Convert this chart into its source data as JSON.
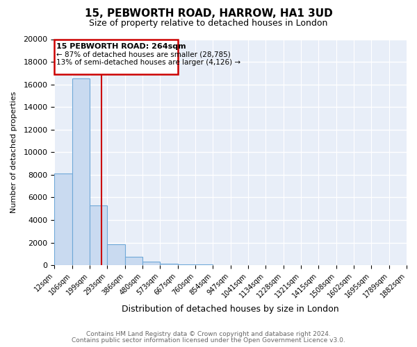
{
  "title": "15, PEBWORTH ROAD, HARROW, HA1 3UD",
  "subtitle": "Size of property relative to detached houses in London",
  "xlabel": "Distribution of detached houses by size in London",
  "ylabel": "Number of detached properties",
  "bar_values": [
    8100,
    16550,
    5300,
    1850,
    750,
    300,
    150,
    100,
    75,
    0,
    0,
    0,
    0,
    0,
    0,
    0,
    0,
    0,
    0,
    0
  ],
  "bar_labels": [
    "12sqm",
    "106sqm",
    "199sqm",
    "293sqm",
    "386sqm",
    "480sqm",
    "573sqm",
    "667sqm",
    "760sqm",
    "854sqm",
    "947sqm",
    "1041sqm",
    "1134sqm",
    "1228sqm",
    "1321sqm",
    "1415sqm",
    "1508sqm",
    "1602sqm",
    "1695sqm",
    "1789sqm",
    "1882sqm"
  ],
  "bar_color": "#c9daf0",
  "bar_edge_color": "#6fa8d8",
  "vline_color": "#cc0000",
  "annotation_line1": "15 PEBWORTH ROAD: 264sqm",
  "annotation_line2": "← 87% of detached houses are smaller (28,785)",
  "annotation_line3": "13% of semi-detached houses are larger (4,126) →",
  "ylim": [
    0,
    20000
  ],
  "yticks": [
    0,
    2000,
    4000,
    6000,
    8000,
    10000,
    12000,
    14000,
    16000,
    18000,
    20000
  ],
  "footer1": "Contains HM Land Registry data © Crown copyright and database right 2024.",
  "footer2": "Contains public sector information licensed under the Open Government Licence v3.0.",
  "bg_color": "#ffffff",
  "plot_bg_color": "#e8eef8",
  "grid_color": "#ffffff",
  "figsize": [
    6.0,
    5.0
  ],
  "dpi": 100
}
